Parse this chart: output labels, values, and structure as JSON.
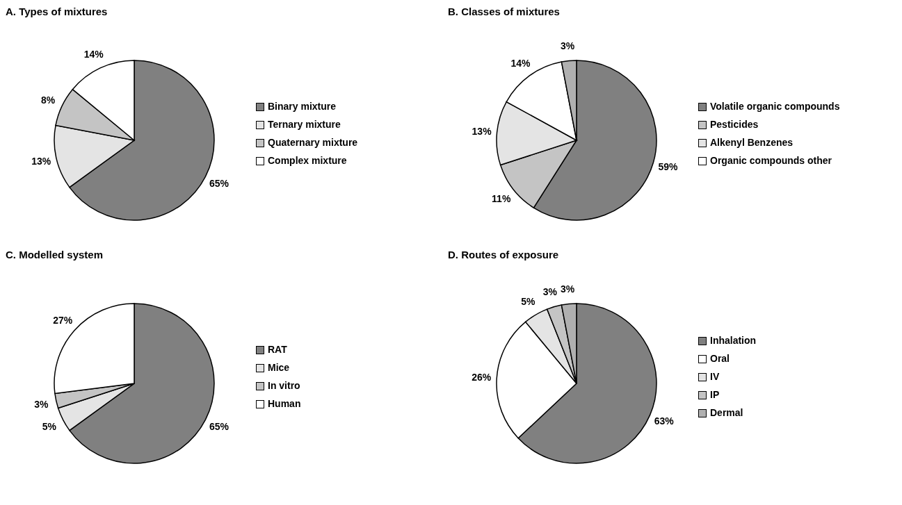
{
  "chart_data": [
    {
      "type": "pie",
      "title": "A. Types of mixtures",
      "categories": [
        "Binary mixture",
        "Ternary mixture",
        "Quaternary mixture",
        "Complex mixture"
      ],
      "values": [
        65,
        13,
        8,
        14
      ],
      "value_labels": [
        "65%",
        "13%",
        "8%",
        "14%"
      ],
      "colors": [
        "#808080",
        "#e4e4e4",
        "#c4c4c4",
        "#ffffff"
      ],
      "legend": "right"
    },
    {
      "type": "pie",
      "title": "B. Classes of mixtures",
      "categories": [
        "Volatile organic compounds",
        "Pesticides",
        "Alkenyl Benzenes",
        "Organic compounds other",
        null
      ],
      "values": [
        59,
        11,
        13,
        14,
        3
      ],
      "value_labels": [
        "59%",
        "11%",
        "13%",
        "14%",
        "3%"
      ],
      "colors": [
        "#808080",
        "#c4c4c4",
        "#e4e4e4",
        "#ffffff",
        "#b0b0b0"
      ],
      "legend": "right"
    },
    {
      "type": "pie",
      "title": "C. Modelled system",
      "categories": [
        "RAT",
        "Mice",
        "In vitro",
        "Human"
      ],
      "values": [
        65,
        5,
        3,
        27
      ],
      "value_labels": [
        "65%",
        "5%",
        "3%",
        "27%"
      ],
      "colors": [
        "#808080",
        "#e4e4e4",
        "#c4c4c4",
        "#ffffff"
      ],
      "legend": "right"
    },
    {
      "type": "pie",
      "title": "D. Routes of exposure",
      "categories": [
        "Inhalation",
        "Oral",
        "IV",
        "IP",
        "Dermal"
      ],
      "values": [
        63,
        26,
        5,
        3,
        3
      ],
      "value_labels": [
        "63%",
        "26%",
        "5%",
        "3%",
        "3%"
      ],
      "colors": [
        "#808080",
        "#ffffff",
        "#e4e4e4",
        "#c4c4c4",
        "#b0b0b0"
      ],
      "legend": "right"
    }
  ]
}
